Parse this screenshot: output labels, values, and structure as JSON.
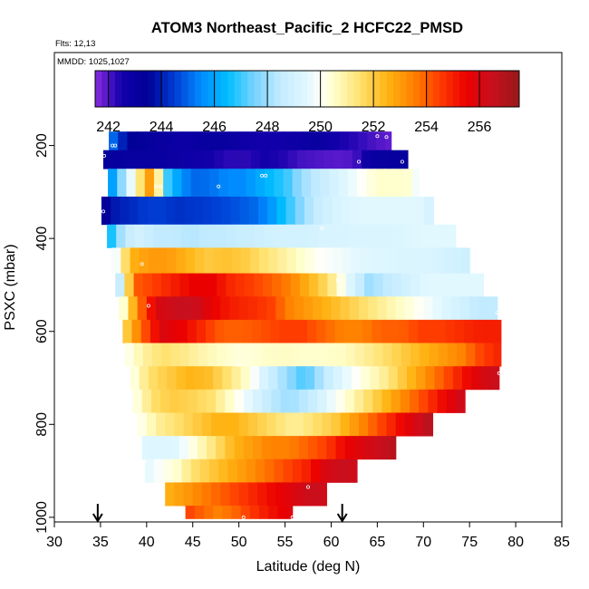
{
  "chart_data": {
    "type": "heatmap",
    "title": "ATOM3 Northeast_Pacific_2 HCFC22_PMSD",
    "subtitle_flights": "Flts: 12,13",
    "subtitle_dates": "MMDD: 1025,1027",
    "xlabel": "Latitude (deg N)",
    "ylabel": "PSXC (mbar)",
    "xlim": [
      30,
      85
    ],
    "ylim": [
      1010,
      0
    ],
    "x_ticks": [
      "30",
      "35",
      "40",
      "45",
      "50",
      "55",
      "60",
      "65",
      "70",
      "75",
      "80",
      "85"
    ],
    "y_ticks": [
      "200",
      "400",
      "600",
      "800",
      "1000"
    ],
    "y_tick_values": [
      200,
      400,
      600,
      800,
      1000
    ],
    "colorbar": {
      "min": 241.5,
      "max": 257.5,
      "tick_labels": [
        "242",
        "244",
        "246",
        "248",
        "250",
        "252",
        "254",
        "256"
      ],
      "tick_values": [
        242,
        244,
        246,
        248,
        250,
        252,
        254,
        256
      ]
    },
    "arrows_latitude": [
      34.7,
      61.2
    ],
    "bands": [
      {
        "p": 190,
        "x0": 35.9,
        "x1": 66.5,
        "v": [
          245.5,
          243.5,
          243.2,
          243.0,
          242.8,
          243.0,
          243.0,
          242.8,
          242.5,
          242.6,
          242.8,
          243.0,
          242.5,
          242.3,
          242.0,
          241.8
        ]
      },
      {
        "p": 230,
        "x0": 35.3,
        "x1": 68.3,
        "v": [
          243.2,
          243.1,
          243.0,
          243.0,
          242.8,
          242.7,
          242.5,
          242.3,
          242.3,
          242.5,
          242.4,
          242.1,
          242.0,
          241.9,
          242.0,
          243.0,
          243.1,
          243.2
        ]
      },
      {
        "p": 280,
        "x0": 35.8,
        "x1": 69.5,
        "v": [
          245.0,
          248.0,
          251.0,
          253.5,
          247.0,
          245.5,
          245.0,
          245.2,
          245.5,
          245.5,
          246.0,
          246.5,
          247.0,
          248.0,
          248.5,
          249.0,
          249.5,
          250.0,
          250.5,
          250.5,
          250.5,
          249.5
        ]
      },
      {
        "p": 340,
        "x0": 35.1,
        "x1": 71.5,
        "v": [
          243.0,
          244.0,
          244.2,
          244.5,
          244.5,
          244.3,
          244.4,
          244.5,
          244.6,
          244.8,
          245.0,
          245.5,
          246.5,
          247.5,
          248.5,
          249.0,
          249.3,
          249.5,
          249.5,
          249.5,
          249.5,
          249.5,
          249.0
        ]
      },
      {
        "p": 400,
        "x0": 35.7,
        "x1": 73.5,
        "v": [
          246.0,
          248.5,
          249.0,
          248.5,
          248.5,
          248.3,
          248.5,
          248.5,
          248.7,
          248.8,
          249.0,
          249.0,
          249.0,
          249.2,
          249.2,
          249.3,
          249.3,
          249.3,
          249.4,
          249.5,
          249.5,
          249.5
        ]
      },
      {
        "p": 450,
        "x0": 36.2,
        "x1": 75.0,
        "v": [
          249.0,
          252.5,
          253.0,
          253.0,
          252.5,
          252.0,
          252.2,
          252.0,
          251.5,
          251.0,
          250.5,
          250.0,
          249.8,
          249.5,
          249.4,
          249.3,
          249.3,
          249.2,
          249.0,
          248.8
        ]
      },
      {
        "p": 500,
        "x0": 36.6,
        "x1": 76.5,
        "v": [
          247.0,
          254.0,
          254.5,
          255.0,
          255.5,
          255.5,
          254.8,
          254.5,
          254.0,
          253.5,
          252.5,
          251.5,
          249.5,
          248.0,
          248.5,
          249.0,
          249.5,
          249.5,
          249.5,
          249.5
        ]
      },
      {
        "p": 550,
        "x0": 37.0,
        "x1": 78.3,
        "v": [
          249.5,
          253.5,
          256.0,
          256.5,
          256.5,
          255.5,
          255.0,
          254.8,
          254.5,
          253.5,
          253.0,
          252.5,
          252.0,
          251.5,
          251.0,
          250.5,
          250.0,
          249.5,
          249.0,
          248.5,
          248.5
        ]
      },
      {
        "p": 600,
        "x0": 37.4,
        "x1": 78.4,
        "v": [
          251.5,
          254.0,
          256.0,
          255.5,
          254.8,
          254.0,
          254.0,
          254.2,
          254.5,
          254.5,
          254.0,
          253.5,
          253.5,
          254.0,
          254.0,
          254.5,
          254.5,
          254.8,
          255.0,
          255.0
        ]
      },
      {
        "p": 650,
        "x0": 37.6,
        "x1": 78.4,
        "v": [
          250.0,
          251.0,
          251.5,
          251.2,
          250.8,
          250.5,
          250.3,
          250.5,
          250.6,
          250.5,
          250.5,
          250.6,
          251.0,
          251.5,
          252.0,
          252.5,
          253.0,
          253.5,
          254.5,
          255.0
        ]
      },
      {
        "p": 700,
        "x0": 38.2,
        "x1": 78.3,
        "v": [
          250.0,
          251.5,
          252.0,
          252.5,
          252.3,
          251.5,
          250.5,
          249.0,
          248.0,
          247.0,
          248.5,
          249.5,
          250.3,
          251.0,
          252.0,
          253.0,
          254.0,
          255.0,
          256.0,
          256.5
        ]
      },
      {
        "p": 750,
        "x0": 38.5,
        "x1": 74.5,
        "v": [
          250.0,
          251.5,
          252.0,
          251.8,
          251.5,
          250.5,
          249.5,
          248.5,
          248.0,
          248.5,
          249.5,
          250.5,
          251.5,
          252.5,
          253.5,
          254.5,
          255.5,
          256.5
        ]
      },
      {
        "p": 800,
        "x0": 39.0,
        "x1": 71.0,
        "v": [
          250.0,
          251.0,
          251.5,
          252.0,
          252.5,
          252.5,
          252.0,
          251.5,
          251.0,
          251.5,
          252.0,
          253.0,
          254.0,
          255.0,
          256.0,
          257.0
        ]
      },
      {
        "p": 850,
        "x0": 39.5,
        "x1": 67.0,
        "v": [
          249.5,
          249.3,
          249.5,
          250.5,
          251.5,
          252.5,
          253.0,
          253.5,
          253.5,
          254.0,
          254.5,
          255.5,
          256.0,
          256.5,
          257.0
        ]
      },
      {
        "p": 900,
        "x0": 39.8,
        "x1": 63.0,
        "v": [
          249.5,
          250.0,
          250.5,
          251.5,
          252.0,
          252.5,
          253.0,
          253.5,
          254.0,
          254.5,
          255.0,
          256.0,
          256.5,
          256.3
        ]
      },
      {
        "p": 950,
        "x0": 42.0,
        "x1": 59.5,
        "v": [
          252.5,
          253.0,
          253.5,
          254.0,
          254.5,
          255.0,
          255.5,
          256.0,
          256.5,
          256.2
        ]
      },
      {
        "p": 990,
        "x0": 44.2,
        "x1": 55.8,
        "v": [
          254.5,
          254.0,
          253.5,
          253.8,
          254.5,
          255.0,
          255.5,
          256.0
        ]
      }
    ],
    "band_edges": [
      170,
      210,
      250,
      310,
      370,
      420,
      475,
      525,
      575,
      625,
      675,
      725,
      775,
      825,
      875,
      925,
      975,
      1003
    ],
    "markers": [
      {
        "x": 36.3,
        "p": 200
      },
      {
        "x": 36.6,
        "p": 200
      },
      {
        "x": 65.0,
        "p": 180
      },
      {
        "x": 66.0,
        "p": 182
      },
      {
        "x": 35.4,
        "p": 222
      },
      {
        "x": 52.5,
        "p": 265
      },
      {
        "x": 52.9,
        "p": 265
      },
      {
        "x": 63.0,
        "p": 235
      },
      {
        "x": 67.7,
        "p": 235
      },
      {
        "x": 41.0,
        "p": 288
      },
      {
        "x": 41.5,
        "p": 288
      },
      {
        "x": 47.8,
        "p": 288
      },
      {
        "x": 35.3,
        "p": 342
      },
      {
        "x": 59.0,
        "p": 378
      },
      {
        "x": 39.5,
        "p": 455
      },
      {
        "x": 60.7,
        "p": 490
      },
      {
        "x": 40.2,
        "p": 545
      },
      {
        "x": 78.0,
        "p": 560
      },
      {
        "x": 50.0,
        "p": 672
      },
      {
        "x": 78.2,
        "p": 690
      },
      {
        "x": 39.7,
        "p": 880
      },
      {
        "x": 57.5,
        "p": 935
      },
      {
        "x": 44.0,
        "p": 1000
      },
      {
        "x": 50.5,
        "p": 1000
      },
      {
        "x": 55.8,
        "p": 1000
      }
    ]
  }
}
